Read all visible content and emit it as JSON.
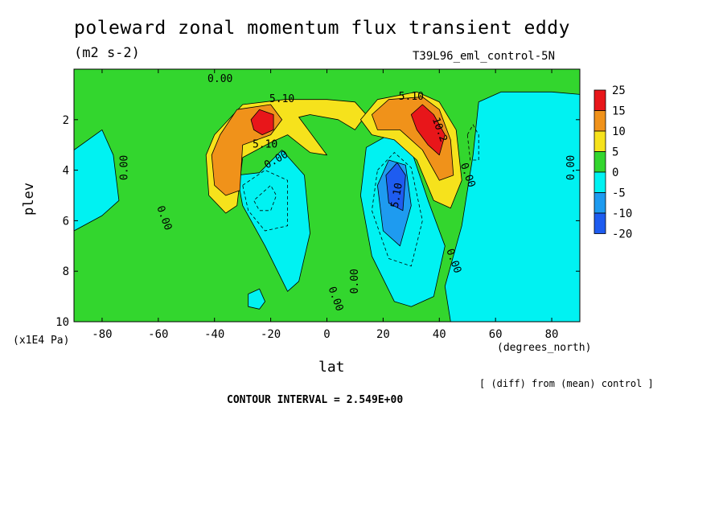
{
  "header": {
    "title": "poleward zonal momentum flux transient eddy",
    "units": "(m2 s-2)",
    "run": "T39L96_eml_control-5N"
  },
  "footer": {
    "xunit": "(degrees_north)",
    "yunit": "(x1E4 Pa)",
    "diff_note": "[ (diff) from (mean) control ]",
    "contour_interval": "CONTOUR INTERVAL = 2.549E+00"
  },
  "chart_data": {
    "type": "heatmap",
    "title": "poleward zonal momentum flux transient eddy",
    "xlabel": "lat",
    "ylabel": "plev",
    "xlim": [
      -90,
      90
    ],
    "ylim": [
      10,
      0
    ],
    "x_ticks": [
      -80,
      -60,
      -40,
      -20,
      0,
      20,
      40,
      60,
      80
    ],
    "y_ticks": [
      2,
      4,
      6,
      8,
      10
    ],
    "colorbar": {
      "levels": [
        "25",
        "15",
        "10",
        "5",
        "0",
        "-5",
        "-10",
        "-20"
      ],
      "colors": [
        "#e8161a",
        "#f0921a",
        "#f6e21c",
        "#33d62e",
        "#00f2f2",
        "#1e9bf0",
        "#1e5cf0"
      ]
    },
    "background_color": "#33d62e",
    "regions": [
      {
        "level": "-5",
        "color": "#00f2f2",
        "points": [
          [
            -90,
            3.2
          ],
          [
            -80,
            2.4
          ],
          [
            -76,
            3.4
          ],
          [
            -74,
            5.2
          ],
          [
            -80,
            5.8
          ],
          [
            -90,
            6.4
          ]
        ]
      },
      {
        "level": "-5",
        "color": "#00f2f2",
        "points": [
          [
            -32,
            4.2
          ],
          [
            -24,
            4.1
          ],
          [
            -16,
            3.2
          ],
          [
            -8,
            4.2
          ],
          [
            -6,
            6.5
          ],
          [
            -10,
            8.4
          ],
          [
            -14,
            8.8
          ],
          [
            -22,
            7.0
          ],
          [
            -30,
            5.4
          ]
        ]
      },
      {
        "level": "-5",
        "color": "#00f2f2",
        "points": [
          [
            -28,
            8.9
          ],
          [
            -24,
            8.7
          ],
          [
            -22,
            9.2
          ],
          [
            -24,
            9.5
          ],
          [
            -28,
            9.4
          ]
        ]
      },
      {
        "level": "-5",
        "color": "#00f2f2",
        "points": [
          [
            14,
            3.1
          ],
          [
            22,
            2.6
          ],
          [
            30,
            3.2
          ],
          [
            36,
            5.2
          ],
          [
            42,
            7.0
          ],
          [
            38,
            9.0
          ],
          [
            30,
            9.4
          ],
          [
            24,
            9.2
          ],
          [
            16,
            7.4
          ],
          [
            12,
            5.0
          ]
        ]
      },
      {
        "level": "-5",
        "color": "#00f2f2",
        "points": [
          [
            48,
            6.2
          ],
          [
            52,
            3.4
          ],
          [
            54,
            1.3
          ],
          [
            62,
            0.9
          ],
          [
            80,
            0.9
          ],
          [
            90,
            1.0
          ],
          [
            90,
            10
          ],
          [
            44,
            10
          ],
          [
            42,
            8.6
          ]
        ]
      },
      {
        "level": "-10",
        "color": "#1e9bf0",
        "points": [
          [
            18,
            4.6
          ],
          [
            22,
            3.6
          ],
          [
            28,
            3.8
          ],
          [
            30,
            5.4
          ],
          [
            26,
            7.0
          ],
          [
            20,
            6.4
          ]
        ]
      },
      {
        "level": "-20",
        "color": "#1e5cf0",
        "points": [
          [
            21,
            4.2
          ],
          [
            25,
            3.7
          ],
          [
            28,
            4.2
          ],
          [
            27,
            5.6
          ],
          [
            22,
            5.3
          ]
        ]
      },
      {
        "level": "5",
        "color": "#f6e21c",
        "points": [
          [
            -43,
            3.4
          ],
          [
            -40,
            2.6
          ],
          [
            -30,
            1.4
          ],
          [
            -15,
            1.2
          ],
          [
            0,
            1.2
          ],
          [
            10,
            1.3
          ],
          [
            14,
            1.8
          ],
          [
            10,
            2.4
          ],
          [
            4,
            2.0
          ],
          [
            -6,
            1.8
          ],
          [
            -10,
            1.9
          ],
          [
            -4,
            2.8
          ],
          [
            0,
            3.4
          ],
          [
            -6,
            3.3
          ],
          [
            -14,
            2.6
          ],
          [
            -20,
            2.9
          ],
          [
            -30,
            3.5
          ],
          [
            -32,
            5.4
          ],
          [
            -36,
            5.7
          ],
          [
            -42,
            5.0
          ]
        ]
      },
      {
        "level": "5",
        "color": "#f6e21c",
        "points": [
          [
            12,
            2.0
          ],
          [
            18,
            1.2
          ],
          [
            32,
            0.9
          ],
          [
            40,
            1.3
          ],
          [
            46,
            2.4
          ],
          [
            48,
            4.4
          ],
          [
            44,
            5.5
          ],
          [
            38,
            5.2
          ],
          [
            32,
            3.6
          ],
          [
            24,
            2.8
          ],
          [
            16,
            2.6
          ]
        ]
      },
      {
        "level": "10",
        "color": "#f0921a",
        "points": [
          [
            -41,
            3.4
          ],
          [
            -38,
            2.6
          ],
          [
            -32,
            1.6
          ],
          [
            -20,
            1.4
          ],
          [
            -16,
            2.0
          ],
          [
            -20,
            2.6
          ],
          [
            -30,
            3.0
          ],
          [
            -31,
            4.8
          ],
          [
            -36,
            5.0
          ],
          [
            -40,
            4.6
          ]
        ]
      },
      {
        "level": "10",
        "color": "#f0921a",
        "points": [
          [
            16,
            1.8
          ],
          [
            22,
            1.2
          ],
          [
            34,
            1.1
          ],
          [
            40,
            1.6
          ],
          [
            44,
            2.8
          ],
          [
            45,
            4.2
          ],
          [
            40,
            4.4
          ],
          [
            34,
            3.2
          ],
          [
            26,
            2.4
          ],
          [
            18,
            2.4
          ]
        ]
      },
      {
        "level": "15",
        "color": "#e8161a",
        "points": [
          [
            -27,
            2.0
          ],
          [
            -24,
            1.6
          ],
          [
            -19,
            1.8
          ],
          [
            -19,
            2.4
          ],
          [
            -23,
            2.6
          ],
          [
            -26,
            2.4
          ]
        ]
      },
      {
        "level": "15",
        "color": "#e8161a",
        "points": [
          [
            30,
            1.8
          ],
          [
            34,
            1.4
          ],
          [
            38,
            1.8
          ],
          [
            42,
            2.6
          ],
          [
            40,
            3.4
          ],
          [
            36,
            3.0
          ],
          [
            32,
            2.4
          ]
        ]
      }
    ],
    "contour_labels": [
      {
        "text": "0.00",
        "lat": -72,
        "plev": 3.9,
        "rotate": -90
      },
      {
        "text": "0.00",
        "lat": -38,
        "plev": 0.4,
        "rotate": 0
      },
      {
        "text": "5.10",
        "lat": -16,
        "plev": 1.2,
        "rotate": 0
      },
      {
        "text": "5.10",
        "lat": -22,
        "plev": 3.0,
        "rotate": 0
      },
      {
        "text": "0.00",
        "lat": -18,
        "plev": 3.6,
        "rotate": -30
      },
      {
        "text": "0.00",
        "lat": -58,
        "plev": 5.9,
        "rotate": 70
      },
      {
        "text": "0.00",
        "lat": 10,
        "plev": 8.4,
        "rotate": -90
      },
      {
        "text": "0.00",
        "lat": 3,
        "plev": 9.1,
        "rotate": 70
      },
      {
        "text": "5.10",
        "lat": 30,
        "plev": 1.1,
        "rotate": 0
      },
      {
        "text": "10.2",
        "lat": 40,
        "plev": 2.4,
        "rotate": 70
      },
      {
        "text": "5.10",
        "lat": 25,
        "plev": 5.0,
        "rotate": -80
      },
      {
        "text": "0.00",
        "lat": 45,
        "plev": 7.6,
        "rotate": 70
      },
      {
        "text": "0.00",
        "lat": 50,
        "plev": 4.2,
        "rotate": 70
      },
      {
        "text": "0.00",
        "lat": 87,
        "plev": 3.9,
        "rotate": -90
      }
    ],
    "dashed_contours": [
      [
        [
          -24,
          5.0
        ],
        [
          -20,
          4.6
        ],
        [
          -18,
          5.0
        ],
        [
          -20,
          5.6
        ],
        [
          -24,
          5.6
        ],
        [
          -26,
          5.2
        ]
      ],
      [
        [
          -30,
          4.6
        ],
        [
          -22,
          4.0
        ],
        [
          -14,
          4.4
        ],
        [
          -14,
          6.2
        ],
        [
          -22,
          6.4
        ],
        [
          -28,
          5.6
        ]
      ],
      [
        [
          18,
          4.0
        ],
        [
          24,
          3.3
        ],
        [
          30,
          3.9
        ],
        [
          34,
          6.0
        ],
        [
          30,
          7.8
        ],
        [
          22,
          7.5
        ],
        [
          16,
          5.6
        ]
      ],
      [
        [
          50,
          2.6
        ],
        [
          52,
          2.2
        ],
        [
          54,
          2.6
        ],
        [
          54,
          3.6
        ],
        [
          51,
          3.6
        ]
      ]
    ],
    "grid": false
  }
}
